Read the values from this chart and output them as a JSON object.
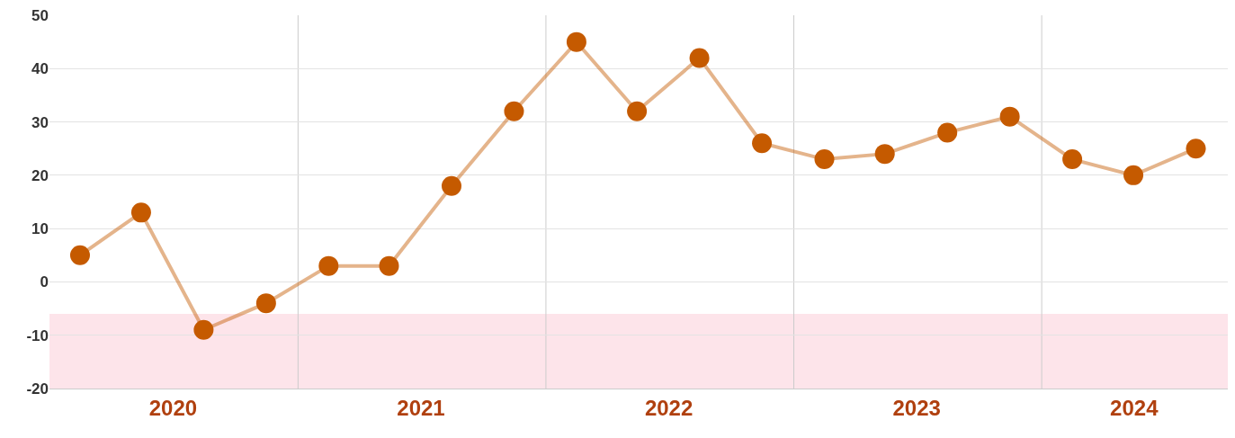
{
  "chart_data": {
    "type": "line",
    "x": [
      "2020-02-15",
      "2020-05-15",
      "2020-08-15",
      "2020-11-15",
      "2021-02-15",
      "2021-05-15",
      "2021-08-15",
      "2021-11-15",
      "2022-02-15",
      "2022-05-15",
      "2022-08-15",
      "2022-11-15",
      "2023-02-15",
      "2023-05-15",
      "2023-08-15",
      "2023-11-15",
      "2024-02-15",
      "2024-05-15",
      "2024-08-15"
    ],
    "series": [
      {
        "color": "#c55a00",
        "values": [
          5,
          13,
          -9,
          -4,
          3,
          3,
          18,
          32,
          45,
          32,
          42,
          26,
          23,
          24,
          28,
          31,
          23,
          20,
          25
        ]
      }
    ],
    "xlim": [
      "2020-01-01",
      "2024-10-01"
    ],
    "xticks": [
      {
        "value": "2020-07-01",
        "label": "2020"
      },
      {
        "value": "2021-01-01",
        "label": null
      },
      {
        "value": "2021-07-01",
        "label": "2021"
      },
      {
        "value": "2022-01-01",
        "label": null
      },
      {
        "value": "2022-07-01",
        "label": "2022"
      },
      {
        "value": "2023-01-01",
        "label": null
      },
      {
        "value": "2023-07-01",
        "label": "2023"
      },
      {
        "value": "2024-01-01",
        "label": null
      },
      {
        "value": "2024-05-16",
        "label": "2024"
      }
    ],
    "ylim": [
      -20,
      50
    ],
    "yticks": [
      -20,
      -10,
      0,
      10,
      20,
      30,
      40,
      50
    ],
    "bands": [
      {
        "axis": "y",
        "from": -20,
        "to": -6,
        "color": "#fde4ea"
      }
    ],
    "grid": true,
    "marker": "circle",
    "line_style": "solid"
  }
}
